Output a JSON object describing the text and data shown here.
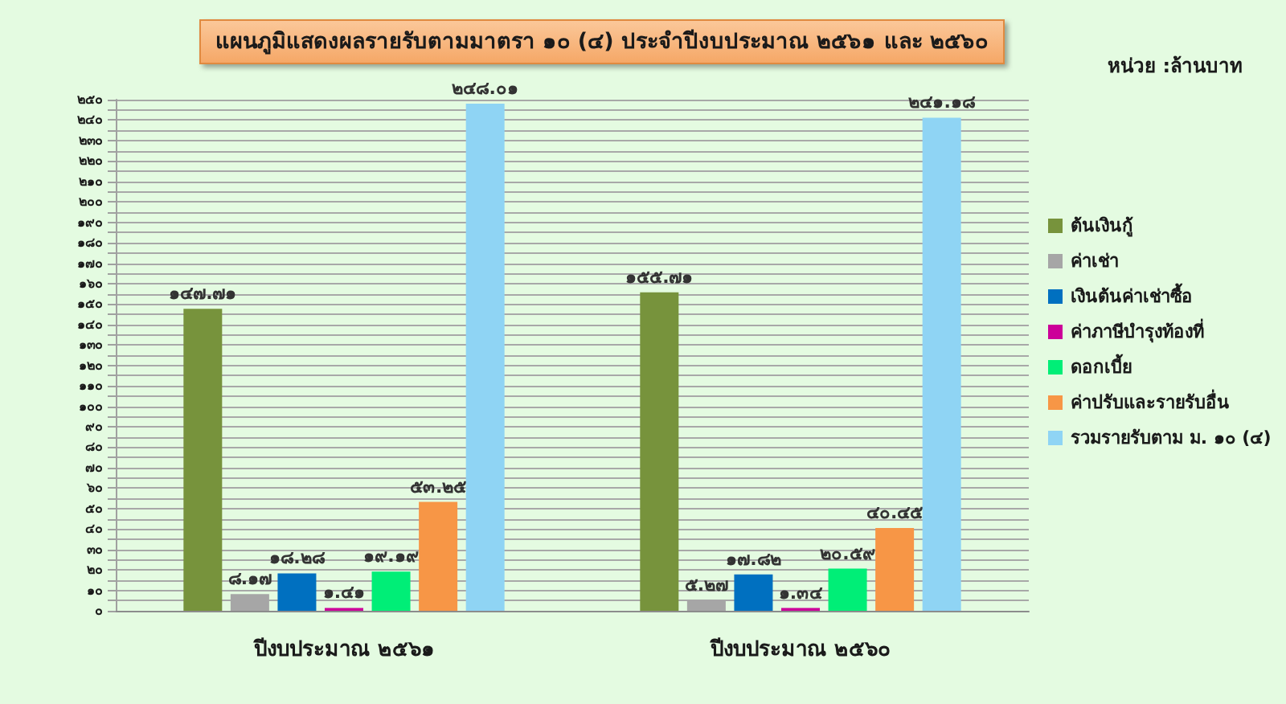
{
  "chart_data": {
    "type": "bar",
    "title": "แผนภูมิแสดงผลรายรับตามมาตรา ๑๐ (๔) ประจำปีงบประมาณ ๒๕๖๑ และ ๒๕๖๐",
    "annotations": [
      "หน่วย :ล้านบาท"
    ],
    "categories": [
      "ปีงบประมาณ ๒๕๖๑",
      "ปีงบประมาณ ๒๕๖๐"
    ],
    "series": [
      {
        "name": "ต้นเงินกู้",
        "color": "#77933c",
        "values": [
          147.71,
          155.71
        ],
        "value_labels": [
          "๑๔๗.๗๑",
          "๑๕๕.๗๑"
        ]
      },
      {
        "name": "ค่าเช่า",
        "color": "#a6a6a6",
        "values": [
          8.17,
          5.27
        ],
        "value_labels": [
          "๘.๑๗",
          "๕.๒๗"
        ]
      },
      {
        "name": "เงินต้นค่าเช่าซื้อ",
        "color": "#0070c0",
        "values": [
          18.28,
          17.82
        ],
        "value_labels": [
          "๑๘.๒๘",
          "๑๗.๘๒"
        ]
      },
      {
        "name": "ค่าภาษีบำรุงท้องที่",
        "color": "#cc0099",
        "values": [
          1.41,
          1.34
        ],
        "value_labels": [
          "๑.๔๑",
          "๑.๓๔"
        ]
      },
      {
        "name": "ดอกเบี้ย",
        "color": "#00ee77",
        "values": [
          19.19,
          20.59
        ],
        "value_labels": [
          "๑๙.๑๙",
          "๒๐.๕๙"
        ]
      },
      {
        "name": "ค่าปรับและรายรับอื่น",
        "color": "#f79646",
        "values": [
          53.25,
          40.45
        ],
        "value_labels": [
          "๕๓.๒๕",
          "๔๐.๔๕"
        ]
      },
      {
        "name": "รวมรายรับตาม ม. ๑๐ (๔)",
        "color": "#8fd4f4",
        "values": [
          248.01,
          241.18
        ],
        "value_labels": [
          "๒๔๘.๐๑",
          "๒๔๑.๑๘"
        ]
      }
    ],
    "ylim": [
      0,
      250
    ],
    "yticks": [
      {
        "value": 0,
        "label": "๐"
      },
      {
        "value": 5,
        "label": null
      },
      {
        "value": 10,
        "label": "๑๐"
      },
      {
        "value": 15,
        "label": null
      },
      {
        "value": 20,
        "label": "๒๐"
      },
      {
        "value": 25,
        "label": null
      },
      {
        "value": 30,
        "label": "๓๐"
      },
      {
        "value": 35,
        "label": null
      },
      {
        "value": 40,
        "label": "๔๐"
      },
      {
        "value": 45,
        "label": null
      },
      {
        "value": 50,
        "label": "๕๐"
      },
      {
        "value": 55,
        "label": null
      },
      {
        "value": 60,
        "label": "๖๐"
      },
      {
        "value": 65,
        "label": null
      },
      {
        "value": 70,
        "label": "๗๐"
      },
      {
        "value": 75,
        "label": null
      },
      {
        "value": 80,
        "label": "๘๐"
      },
      {
        "value": 85,
        "label": null
      },
      {
        "value": 90,
        "label": "๙๐"
      },
      {
        "value": 95,
        "label": null
      },
      {
        "value": 100,
        "label": "๑๐๐"
      },
      {
        "value": 105,
        "label": null
      },
      {
        "value": 110,
        "label": "๑๑๐"
      },
      {
        "value": 115,
        "label": null
      },
      {
        "value": 120,
        "label": "๑๒๐"
      },
      {
        "value": 125,
        "label": null
      },
      {
        "value": 130,
        "label": "๑๓๐"
      },
      {
        "value": 135,
        "label": null
      },
      {
        "value": 140,
        "label": "๑๔๐"
      },
      {
        "value": 145,
        "label": null
      },
      {
        "value": 150,
        "label": "๑๕๐"
      },
      {
        "value": 155,
        "label": null
      },
      {
        "value": 160,
        "label": "๑๖๐"
      },
      {
        "value": 165,
        "label": null
      },
      {
        "value": 170,
        "label": "๑๗๐"
      },
      {
        "value": 175,
        "label": null
      },
      {
        "value": 180,
        "label": "๑๘๐"
      },
      {
        "value": 185,
        "label": null
      },
      {
        "value": 190,
        "label": "๑๙๐"
      },
      {
        "value": 195,
        "label": null
      },
      {
        "value": 200,
        "label": "๒๐๐"
      },
      {
        "value": 205,
        "label": null
      },
      {
        "value": 210,
        "label": "๒๑๐"
      },
      {
        "value": 215,
        "label": null
      },
      {
        "value": 220,
        "label": "๒๒๐"
      },
      {
        "value": 225,
        "label": null
      },
      {
        "value": 230,
        "label": "๒๓๐"
      },
      {
        "value": 235,
        "label": null
      },
      {
        "value": 240,
        "label": "๒๔๐"
      },
      {
        "value": 245,
        "label": null
      },
      {
        "value": 250,
        "label": "๒๕๐"
      }
    ],
    "grid": "y",
    "legend": "right"
  }
}
